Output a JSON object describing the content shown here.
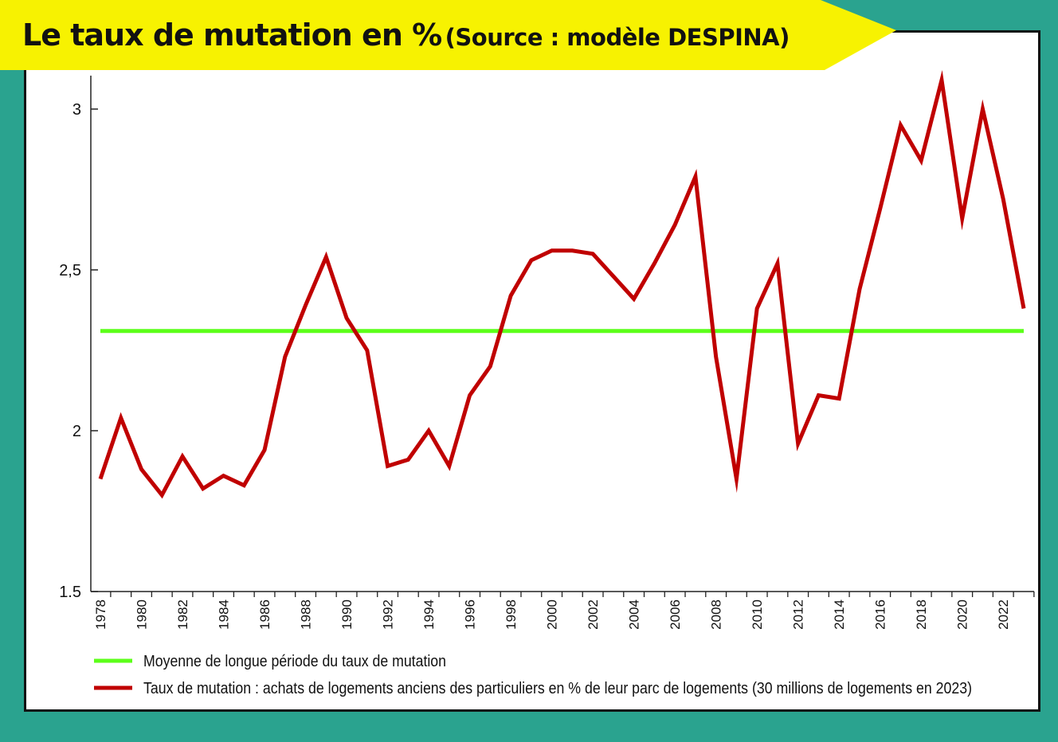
{
  "header": {
    "title": "Le taux de mutation en %",
    "subtitle": "(Source : modèle DESPINA)"
  },
  "colors": {
    "background": "#2aa38f",
    "banner": "#f7f201",
    "series_red": "#c00000",
    "series_green": "#5cff1a"
  },
  "chart_data": {
    "type": "line",
    "title": "Le taux de mutation en % (Source : modèle DESPINA)",
    "xlabel": "",
    "ylabel": "",
    "ylim": [
      1.5,
      3.1
    ],
    "xlim": [
      1977.5,
      2023.5
    ],
    "y_ticks": [
      {
        "value": 1.5,
        "label": "1.5"
      },
      {
        "value": 2,
        "label": "2"
      },
      {
        "value": 2.5,
        "label": "2,5"
      },
      {
        "value": 3,
        "label": "3"
      }
    ],
    "x_tick_labels": [
      "1978",
      "1980",
      "1982",
      "1984",
      "1986",
      "1988",
      "1990",
      "1992",
      "1994",
      "1996",
      "1998",
      "2000",
      "2002",
      "2004",
      "2006",
      "2008",
      "2010",
      "2012",
      "2014",
      "2016",
      "2018",
      "2020",
      "2022"
    ],
    "grid": false,
    "legend_position": "bottom",
    "series": [
      {
        "name": "Moyenne de longue période du taux de mutation",
        "color": "#5cff1a",
        "x": [
          1978,
          2023
        ],
        "y": [
          2.31,
          2.31
        ]
      },
      {
        "name": "Taux de mutation : achats de logements anciens des particuliers en % de leur parc de logements (30 millions de logements en 2023)",
        "color": "#c00000",
        "x": [
          1978,
          1979,
          1980,
          1981,
          1982,
          1983,
          1984,
          1985,
          1986,
          1987,
          1988,
          1989,
          1990,
          1991,
          1992,
          1993,
          1994,
          1995,
          1996,
          1997,
          1998,
          1999,
          2000,
          2001,
          2002,
          2003,
          2004,
          2005,
          2006,
          2007,
          2008,
          2009,
          2010,
          2011,
          2012,
          2013,
          2014,
          2015,
          2016,
          2017,
          2018,
          2019,
          2020,
          2021,
          2022,
          2023
        ],
        "y": [
          1.85,
          2.04,
          1.88,
          1.8,
          1.92,
          1.82,
          1.86,
          1.83,
          1.94,
          2.23,
          2.39,
          2.54,
          2.35,
          2.25,
          1.89,
          1.91,
          2.0,
          1.89,
          2.11,
          2.2,
          2.42,
          2.53,
          2.56,
          2.56,
          2.55,
          2.48,
          2.41,
          2.52,
          2.64,
          2.79,
          2.23,
          1.85,
          2.38,
          2.52,
          1.96,
          2.11,
          2.1,
          2.44,
          2.69,
          2.95,
          2.84,
          3.09,
          2.66,
          3.0,
          2.72,
          2.38
        ]
      }
    ]
  }
}
